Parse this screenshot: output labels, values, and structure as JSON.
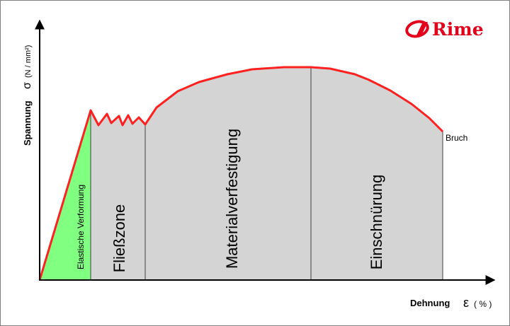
{
  "brand": {
    "name": "Rime",
    "color": "#e3001b"
  },
  "axes": {
    "y_label": "Spannung",
    "y_symbol": "σ",
    "y_unit": "(N / mm²)",
    "x_label": "Dehnung",
    "x_symbol": "ε",
    "x_unit": "( % )"
  },
  "regions": [
    {
      "id": "elastic",
      "label": "Elastische Verformung",
      "color": "#80ff80"
    },
    {
      "id": "yield",
      "label": "Fließzone",
      "color": "#d4d4d4"
    },
    {
      "id": "hardening",
      "label": "Materialverfestigung",
      "color": "#d4d4d4"
    },
    {
      "id": "necking",
      "label": "Einschnürung",
      "color": "#d4d4d4"
    }
  ],
  "annotation": {
    "fracture": "Bruch"
  },
  "colors": {
    "curve": "#ff2020",
    "axis": "#000000",
    "region_border": "#404040"
  }
}
